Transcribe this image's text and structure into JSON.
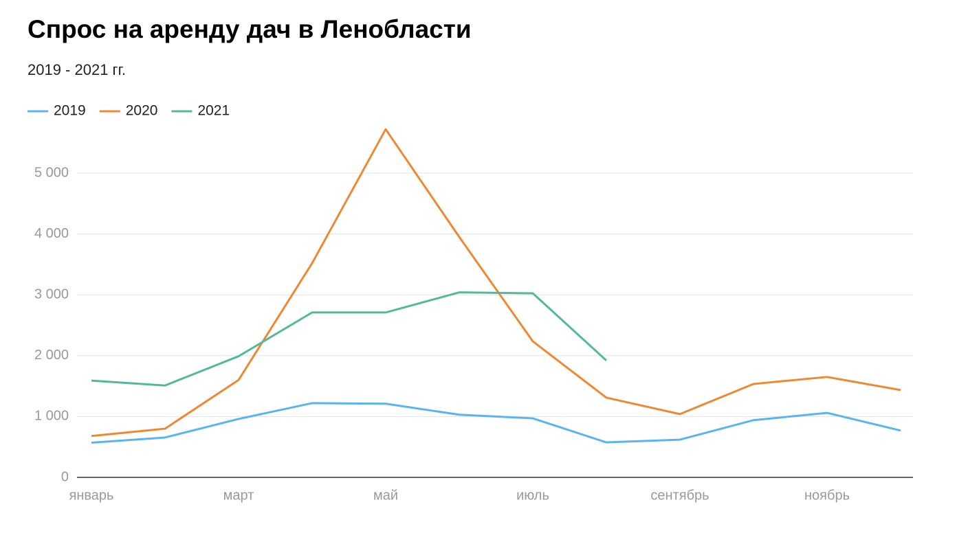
{
  "chart_data": {
    "type": "line",
    "title": "Спрос на аренду дач в Ленобласти",
    "subtitle": "2019 - 2021 гг.",
    "categories": [
      "январь",
      null,
      "март",
      null,
      "май",
      null,
      "июль",
      null,
      "сентябрь",
      null,
      "ноябрь",
      null
    ],
    "series": [
      {
        "name": "2019",
        "color": "#5ab4f0",
        "values": [
          570,
          655,
          960,
          1220,
          1210,
          1030,
          970,
          575,
          620,
          940,
          1060,
          770
        ]
      },
      {
        "name": "2020",
        "color": "#ee8833",
        "values": [
          680,
          800,
          1600,
          3520,
          5720,
          3950,
          2235,
          1310,
          1040,
          1535,
          1650,
          1435
        ]
      },
      {
        "name": "2021",
        "color": "#52b99a",
        "values": [
          1590,
          1510,
          1990,
          2710,
          2710,
          3040,
          3025,
          1920,
          null,
          null,
          null,
          null
        ]
      }
    ],
    "ylim": [
      0,
      6000
    ],
    "yticks": [
      0,
      {
        "value": 1000,
        "label": "1 000"
      },
      {
        "value": 2000,
        "label": "2 000"
      },
      {
        "value": 3000,
        "label": "3 000"
      },
      {
        "value": 4000,
        "label": "4 000"
      },
      {
        "value": 5000,
        "label": "5 000"
      }
    ],
    "grid": true,
    "legend": "top"
  }
}
